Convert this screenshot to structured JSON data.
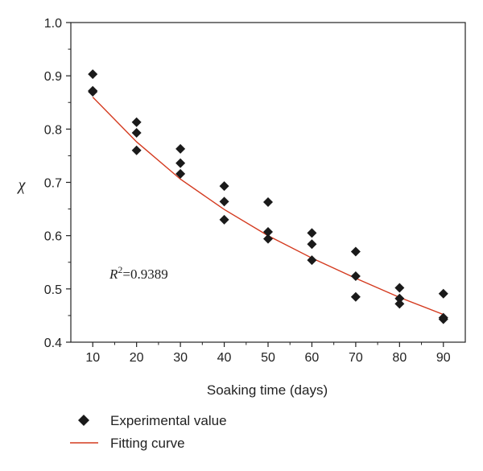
{
  "chart_data": {
    "type": "scatter",
    "xlabel": "Soaking time (days)",
    "ylabel": "χ",
    "xlim": [
      5,
      95
    ],
    "ylim": [
      0.4,
      1.0
    ],
    "xticks": [
      10,
      20,
      30,
      40,
      50,
      60,
      70,
      80,
      90
    ],
    "yticks": [
      0.4,
      0.5,
      0.6,
      0.7,
      0.8,
      0.9,
      1.0
    ],
    "xtick_labels": [
      "10",
      "20",
      "30",
      "40",
      "50",
      "60",
      "70",
      "80",
      "90"
    ],
    "ytick_labels": [
      "0.4",
      "0.5",
      "0.6",
      "0.7",
      "0.8",
      "0.9",
      "1.0"
    ],
    "annotation": {
      "prefix": "R",
      "sup": "2",
      "suffix": "=0.9389"
    },
    "grid": false,
    "legend_position": "bottom",
    "series": [
      {
        "name": "Experimental value",
        "kind": "scatter",
        "marker": "diamond",
        "color": "#1a1a1a",
        "points": [
          [
            10,
            0.903
          ],
          [
            10,
            0.872
          ],
          [
            10,
            0.87
          ],
          [
            20,
            0.813
          ],
          [
            20,
            0.793
          ],
          [
            20,
            0.76
          ],
          [
            30,
            0.763
          ],
          [
            30,
            0.736
          ],
          [
            30,
            0.716
          ],
          [
            40,
            0.693
          ],
          [
            40,
            0.664
          ],
          [
            40,
            0.63
          ],
          [
            50,
            0.663
          ],
          [
            50,
            0.607
          ],
          [
            50,
            0.594
          ],
          [
            60,
            0.605
          ],
          [
            60,
            0.584
          ],
          [
            60,
            0.554
          ],
          [
            70,
            0.57
          ],
          [
            70,
            0.524
          ],
          [
            70,
            0.485
          ],
          [
            80,
            0.502
          ],
          [
            80,
            0.482
          ],
          [
            80,
            0.472
          ],
          [
            90,
            0.491
          ],
          [
            90,
            0.446
          ],
          [
            90,
            0.443
          ]
        ]
      },
      {
        "name": "Fitting curve",
        "kind": "line",
        "color": "#d43a1f",
        "points": [
          [
            10,
            0.86
          ],
          [
            20,
            0.776
          ],
          [
            30,
            0.706
          ],
          [
            40,
            0.649
          ],
          [
            50,
            0.6
          ],
          [
            60,
            0.558
          ],
          [
            70,
            0.52
          ],
          [
            80,
            0.484
          ],
          [
            90,
            0.452
          ]
        ]
      }
    ]
  }
}
